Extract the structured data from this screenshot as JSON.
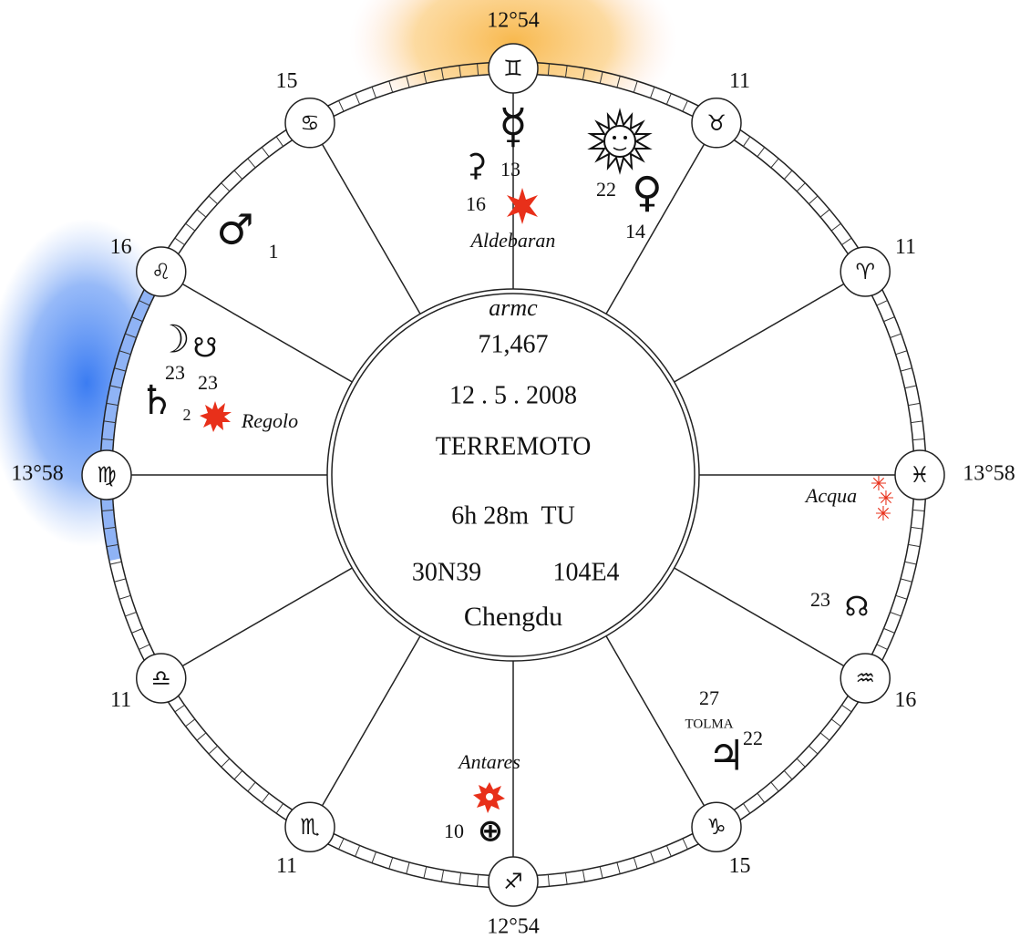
{
  "center": {
    "label": "armc",
    "armc": "71,467",
    "date": "12 . 5 . 2008",
    "event": "TERREMOTO",
    "time": "6h 28m  TU",
    "lat": "30N39",
    "lon": "104E4",
    "place": "Chengdu"
  },
  "cusps": [
    {
      "sign": "♊",
      "degree": "12°54"
    },
    {
      "sign": "♉",
      "degree": "11"
    },
    {
      "sign": "♈",
      "degree": "11"
    },
    {
      "sign": "♓",
      "degree": "13°58"
    },
    {
      "sign": "♒",
      "degree": "16"
    },
    {
      "sign": "♑",
      "degree": "15"
    },
    {
      "sign": "♐",
      "degree": "12°54"
    },
    {
      "sign": "♏",
      "degree": "11"
    },
    {
      "sign": "♎",
      "degree": "11"
    },
    {
      "sign": "♍",
      "degree": "13°58"
    },
    {
      "sign": "♌",
      "degree": "16"
    },
    {
      "sign": "♋",
      "degree": "15"
    }
  ],
  "planets": {
    "mercury": {
      "glyph": "☿"
    },
    "ceres": {
      "glyph": "⚳",
      "degree": "13"
    },
    "aldebaran": {
      "degree": "16",
      "name": "Aldebaran"
    },
    "venus": {
      "glyph": "♀",
      "degree": "22",
      "degree2": "14"
    },
    "mars": {
      "glyph": "♂",
      "degree": "1"
    },
    "moon": {
      "glyph": "☽",
      "degree": "23"
    },
    "south_node": {
      "glyph": "☋",
      "degree": "23"
    },
    "saturn": {
      "glyph": "♄",
      "degree": "2"
    },
    "regolo": {
      "name": "Regolo"
    },
    "acqua": {
      "name": "Acqua"
    },
    "north_node": {
      "glyph": "☊",
      "degree": "23"
    },
    "jupiter": {
      "glyph": "♃",
      "degree": "22",
      "star_degree": "27",
      "star": "TOLMA"
    },
    "antares": {
      "name": "Antares"
    },
    "earth": {
      "glyph": "⊕",
      "degree": "10"
    }
  }
}
